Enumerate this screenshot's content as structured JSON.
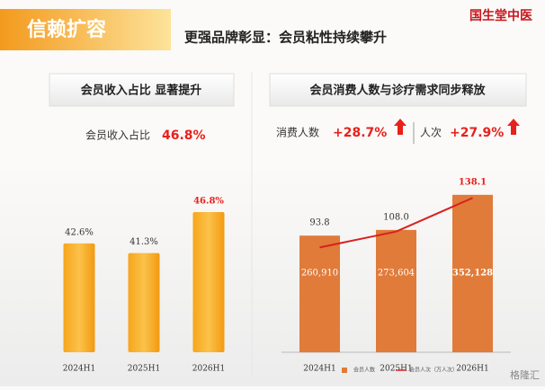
{
  "header": {
    "tag": "信赖扩容",
    "title": "更强品牌彰显：会员粘性持续攀升",
    "logo": "国生堂中医"
  },
  "left": {
    "heading": "会员收入占比 显著提升",
    "metric_label": "会员收入占比",
    "metric_value": "46.8%"
  },
  "right": {
    "heading": "会员消费人数与诊疗需求同步释放",
    "metrics": [
      {
        "label": "消费人数",
        "value": "+28.7%"
      },
      {
        "label": "人次",
        "value": "+27.9%"
      }
    ]
  },
  "chart_data": [
    {
      "type": "bar",
      "categories": [
        "2024H1",
        "2025H1",
        "2026H1"
      ],
      "values": [
        42.6,
        41.3,
        46.8
      ],
      "value_labels": [
        "42.6%",
        "41.3%",
        "46.8%"
      ],
      "color": "#f5a01e",
      "label_colors": [
        "#333333",
        "#333333",
        "#e8201c"
      ],
      "ylim": [
        28,
        48
      ]
    },
    {
      "type": "bar-line",
      "categories": [
        "2024H1",
        "2025H1",
        "2026H1"
      ],
      "series": [
        {
          "name": "会员人数",
          "color": "#e07b39",
          "values": [
            260910,
            273604,
            352128
          ],
          "value_labels": [
            "260,910",
            "273,604",
            "352,128"
          ],
          "label_colors": [
            "#ffffff",
            "#ffffff",
            "#ffffff"
          ]
        },
        {
          "name": "会员人次（万人次）",
          "color": "#d9201f",
          "axis": "y2",
          "values": [
            93.8,
            108.0,
            138.1
          ],
          "value_labels": [
            "93.8",
            "108.0",
            "138.1"
          ],
          "label_colors": [
            "#333333",
            "#333333",
            "#e8201c"
          ]
        }
      ],
      "ylim": [
        0,
        400000
      ],
      "y2lim": [
        0,
        160
      ]
    }
  ],
  "watermark": "格隆汇"
}
